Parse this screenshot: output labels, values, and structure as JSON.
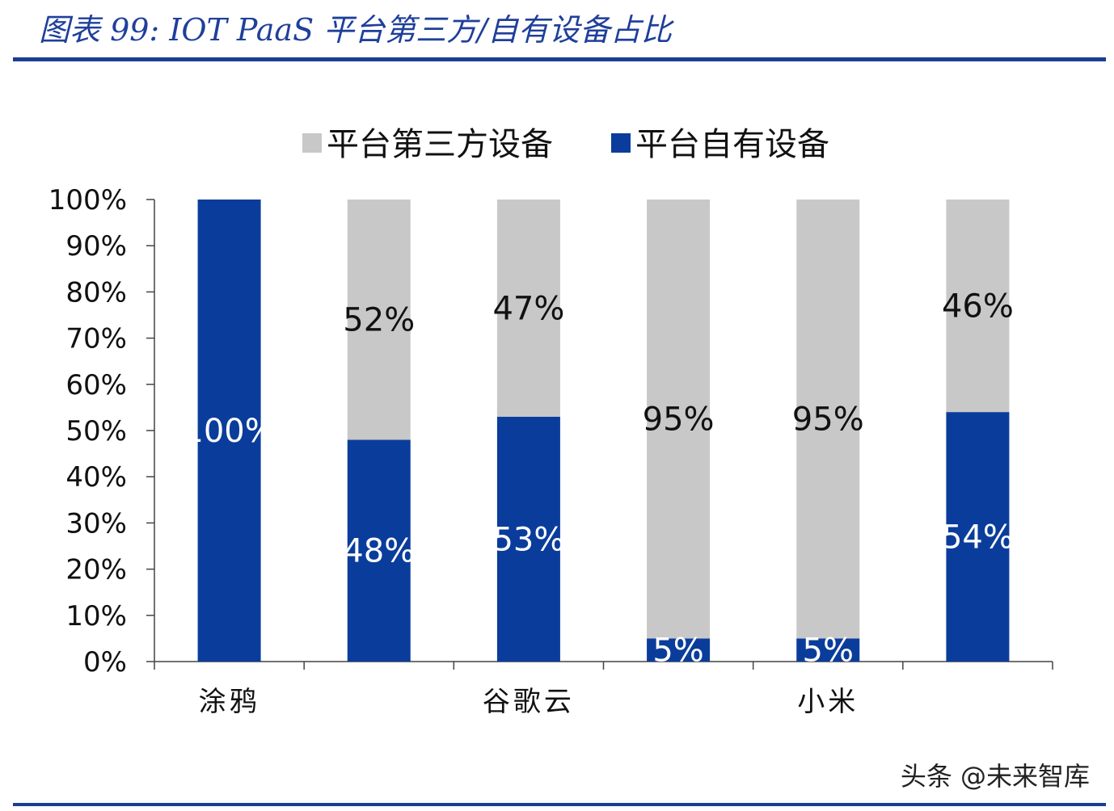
{
  "figure_title": "图表 99:  IOT PaaS 平台第三方/自有设备占比",
  "watermark": "头条 @未来智库",
  "colors": {
    "third_party": "#c8c8c8",
    "own": "#0a3d9b",
    "rule": "#1b3e94",
    "title": "#1f3f9a"
  },
  "chart_data": {
    "type": "bar",
    "stacked": true,
    "categories": [
      "涂鸦",
      "",
      "谷歌云",
      "",
      "小米",
      ""
    ],
    "series": [
      {
        "name": "平台第三方设备",
        "values": [
          0,
          52,
          47,
          95,
          95,
          46
        ],
        "labels": [
          "",
          "52%",
          "47%",
          "95%",
          "95%",
          "46%"
        ]
      },
      {
        "name": "平台自有设备",
        "values": [
          100,
          48,
          53,
          5,
          5,
          54
        ],
        "labels": [
          "100%",
          "48%",
          "53%",
          "5%",
          "5%",
          "54%"
        ]
      }
    ],
    "ylim": [
      0,
      100
    ],
    "yticks": [
      "0%",
      "10%",
      "20%",
      "30%",
      "40%",
      "50%",
      "60%",
      "70%",
      "80%",
      "90%",
      "100%"
    ],
    "legend_position": "top",
    "grid": false
  }
}
